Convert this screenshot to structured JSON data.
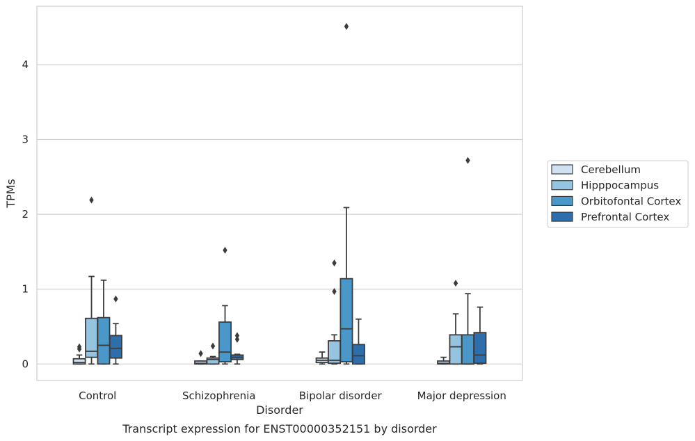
{
  "chart_data": {
    "type": "box",
    "title": "Transcript expression for ENST00000352151 by disorder",
    "xlabel": "Disorder",
    "ylabel": "TPMs",
    "ylim": [
      -0.22,
      4.78
    ],
    "yticks": [
      0,
      1,
      2,
      3,
      4
    ],
    "grid": "horizontal",
    "legend_position": "right",
    "categories": [
      "Control",
      "Schizophrenia",
      "Bipolar disorder",
      "Major depression"
    ],
    "series": [
      {
        "name": "Cerebellum",
        "color": "#d0e1f2",
        "boxes": [
          {
            "whislo": 0.0,
            "q1": 0.0,
            "med": 0.02,
            "q3": 0.07,
            "whishi": 0.12,
            "fliers": [
              0.2,
              0.23
            ]
          },
          {
            "whislo": 0.0,
            "q1": 0.0,
            "med": 0.01,
            "q3": 0.04,
            "whishi": 0.04,
            "fliers": [
              0.14
            ]
          },
          {
            "whislo": 0.0,
            "q1": 0.02,
            "med": 0.05,
            "q3": 0.08,
            "whishi": 0.16,
            "fliers": []
          },
          {
            "whislo": 0.0,
            "q1": 0.0,
            "med": 0.01,
            "q3": 0.04,
            "whishi": 0.09,
            "fliers": []
          }
        ]
      },
      {
        "name": "Hipppocampus",
        "color": "#94c4df",
        "boxes": [
          {
            "whislo": 0.0,
            "q1": 0.09,
            "med": 0.17,
            "q3": 0.61,
            "whishi": 1.17,
            "fliers": [
              2.19
            ]
          },
          {
            "whislo": 0.0,
            "q1": 0.0,
            "med": 0.06,
            "q3": 0.08,
            "whishi": 0.1,
            "fliers": [
              0.24
            ]
          },
          {
            "whislo": 0.0,
            "q1": 0.01,
            "med": 0.05,
            "q3": 0.31,
            "whishi": 0.39,
            "fliers": [
              0.97,
              1.35
            ]
          },
          {
            "whislo": 0.0,
            "q1": 0.0,
            "med": 0.23,
            "q3": 0.39,
            "whishi": 0.67,
            "fliers": [
              1.08
            ]
          }
        ]
      },
      {
        "name": "Orbitofontal Cortex",
        "color": "#4a98c9",
        "boxes": [
          {
            "whislo": 0.0,
            "q1": 0.0,
            "med": 0.25,
            "q3": 0.62,
            "whishi": 1.12,
            "fliers": []
          },
          {
            "whislo": 0.0,
            "q1": 0.03,
            "med": 0.16,
            "q3": 0.56,
            "whishi": 0.78,
            "fliers": [
              1.52
            ]
          },
          {
            "whislo": 0.0,
            "q1": 0.03,
            "med": 0.47,
            "q3": 1.14,
            "whishi": 2.09,
            "fliers": [
              4.51
            ]
          },
          {
            "whislo": 0.0,
            "q1": 0.0,
            "med": 0.0,
            "q3": 0.39,
            "whishi": 0.94,
            "fliers": [
              2.72
            ]
          }
        ]
      },
      {
        "name": "Prefrontal Cortex",
        "color": "#2f6ead",
        "boxes": [
          {
            "whislo": 0.0,
            "q1": 0.08,
            "med": 0.21,
            "q3": 0.38,
            "whishi": 0.54,
            "fliers": [
              0.87
            ]
          },
          {
            "whislo": 0.0,
            "q1": 0.06,
            "med": 0.09,
            "q3": 0.12,
            "whishi": 0.13,
            "fliers": [
              0.33,
              0.38
            ]
          },
          {
            "whislo": 0.0,
            "q1": 0.0,
            "med": 0.11,
            "q3": 0.26,
            "whishi": 0.6,
            "fliers": []
          },
          {
            "whislo": 0.0,
            "q1": 0.01,
            "med": 0.12,
            "q3": 0.42,
            "whishi": 0.76,
            "fliers": []
          }
        ]
      }
    ]
  }
}
